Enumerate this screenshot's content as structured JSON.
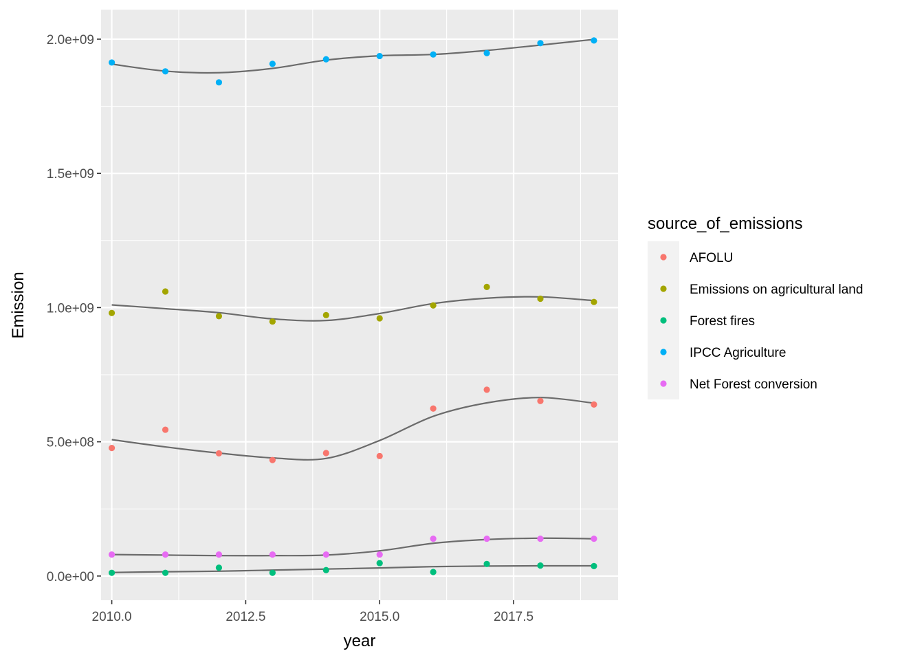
{
  "chart_data": {
    "type": "scatter",
    "xlabel": "year",
    "ylabel": "Emission",
    "xlim": [
      2009.8,
      2019.45
    ],
    "ylim": [
      -90000000,
      2110000000
    ],
    "x_ticks": [
      {
        "value": 2010.0,
        "label": "2010.0"
      },
      {
        "value": 2012.5,
        "label": "2012.5"
      },
      {
        "value": 2015.0,
        "label": "2015.0"
      },
      {
        "value": 2017.5,
        "label": "2017.5"
      }
    ],
    "y_ticks": [
      {
        "value": 0,
        "label": "0.0e+00"
      },
      {
        "value": 500000000,
        "label": "5.0e+08"
      },
      {
        "value": 1000000000,
        "label": "1.0e+09"
      },
      {
        "value": 1500000000,
        "label": "1.5e+09"
      },
      {
        "value": 2000000000,
        "label": "2.0e+09"
      }
    ],
    "grid": true,
    "background": "#ebebeb",
    "smooth_color": "#6b6b6b",
    "legend": {
      "title": "source_of_emissions",
      "placement": "right"
    },
    "x": [
      2010,
      2011,
      2012,
      2013,
      2014,
      2015,
      2016,
      2017,
      2018,
      2019
    ],
    "series": [
      {
        "name": "AFOLU",
        "color": "#F8766D",
        "values": [
          477000000,
          545000000,
          457000000,
          432000000,
          458000000,
          447000000,
          624000000,
          694000000,
          652000000,
          639000000
        ],
        "smooth": [
          508000000,
          481000000,
          458000000,
          440000000,
          438000000,
          505000000,
          595000000,
          645000000,
          665000000,
          644000000
        ]
      },
      {
        "name": "Emissions on agricultural land",
        "color": "#A3A500",
        "values": [
          980000000,
          1060000000,
          968000000,
          948000000,
          972000000,
          960000000,
          1008000000,
          1077000000,
          1033000000,
          1021000000
        ],
        "smooth": [
          1010000000,
          996000000,
          981000000,
          958000000,
          952000000,
          978000000,
          1015000000,
          1035000000,
          1040000000,
          1026000000
        ]
      },
      {
        "name": "Forest fires",
        "color": "#00BF7D",
        "values": [
          12000000,
          12000000,
          31000000,
          12000000,
          22000000,
          48000000,
          15000000,
          45000000,
          39000000,
          37000000
        ],
        "smooth": [
          13000000,
          16000000,
          18000000,
          22000000,
          26000000,
          30000000,
          35000000,
          37000000,
          38000000,
          38000000
        ]
      },
      {
        "name": "IPCC Agriculture",
        "color": "#00B0F6",
        "values": [
          1913000000,
          1880000000,
          1839000000,
          1908000000,
          1925000000,
          1937000000,
          1943000000,
          1948000000,
          1985000000,
          1995000000
        ],
        "smooth": [
          1907000000,
          1881000000,
          1875000000,
          1891000000,
          1922000000,
          1938000000,
          1943000000,
          1958000000,
          1978000000,
          1999000000
        ]
      },
      {
        "name": "Net Forest conversion",
        "color": "#E76BF3",
        "values": [
          80000000,
          80000000,
          80000000,
          80000000,
          80000000,
          80000000,
          139000000,
          139000000,
          139000000,
          139000000
        ],
        "smooth": [
          80000000,
          78000000,
          76000000,
          76000000,
          78000000,
          94000000,
          122000000,
          136000000,
          141000000,
          139000000
        ]
      }
    ]
  }
}
